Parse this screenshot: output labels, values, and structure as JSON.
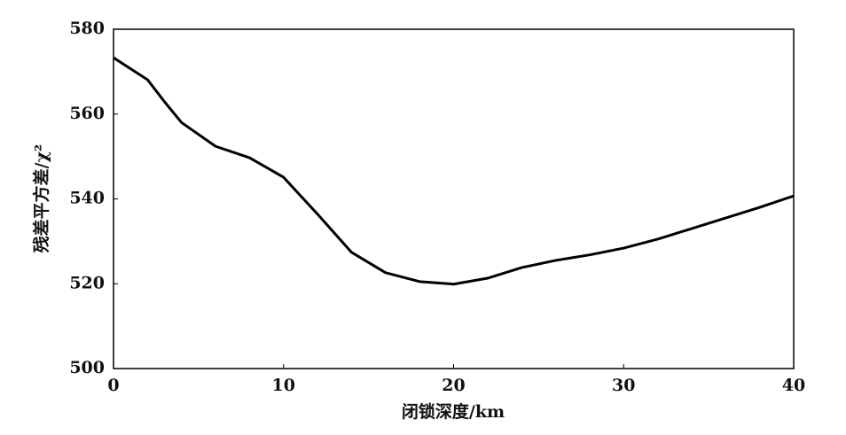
{
  "chart_data": {
    "type": "line",
    "x_label": "闭锁深度/km",
    "y_label": "残差平方差/χ²",
    "x": [
      0,
      2,
      3,
      4,
      6,
      8,
      10,
      12,
      14,
      16,
      18,
      20,
      22,
      24,
      26,
      28,
      30,
      32,
      34,
      36,
      38,
      40
    ],
    "series": [
      {
        "color": "#000000",
        "values": [
          573.3,
          568.1,
          562.9,
          558,
          552.4,
          549.7,
          545.1,
          536.4,
          527.4,
          522.6,
          520.5,
          519.9,
          521.3,
          523.8,
          525.5,
          526.8,
          528.4,
          530.5,
          533,
          535.5,
          538,
          540.7
        ]
      }
    ],
    "xlim": [
      0,
      40
    ],
    "xticks": [
      0,
      10,
      20,
      30,
      40
    ],
    "ylim": [
      500,
      580
    ],
    "yticks": [
      500,
      520,
      540,
      560,
      580
    ],
    "grid": false
  }
}
